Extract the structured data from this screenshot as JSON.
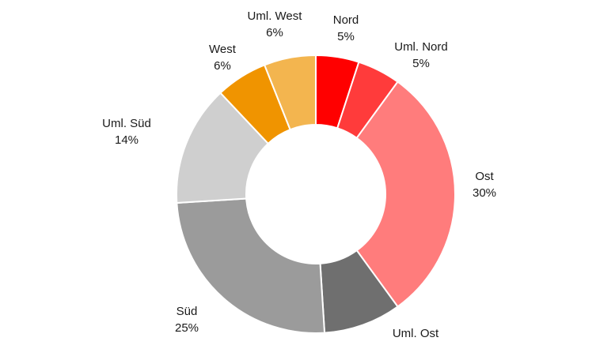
{
  "chart_data": {
    "type": "pie",
    "variant": "donut",
    "title": "",
    "legend": "none",
    "slices": [
      {
        "label": "Nord",
        "value": 5,
        "pct_text": "5%",
        "color": "#ff0000"
      },
      {
        "label": "Uml. Nord",
        "value": 5,
        "pct_text": "5%",
        "color": "#ff3b3b"
      },
      {
        "label": "Ost",
        "value": 30,
        "pct_text": "30%",
        "color": "#ff7c7c"
      },
      {
        "label": "Uml. Ost",
        "value": 9,
        "pct_text": "",
        "color": "#6f6f6f"
      },
      {
        "label": "Süd",
        "value": 25,
        "pct_text": "25%",
        "color": "#9b9b9b"
      },
      {
        "label": "Uml. Süd",
        "value": 14,
        "pct_text": "14%",
        "color": "#cfcfcf"
      },
      {
        "label": "West",
        "value": 6,
        "pct_text": "6%",
        "color": "#f09400"
      },
      {
        "label": "Uml. West",
        "value": 6,
        "pct_text": "6%",
        "color": "#f3b54f"
      }
    ]
  }
}
